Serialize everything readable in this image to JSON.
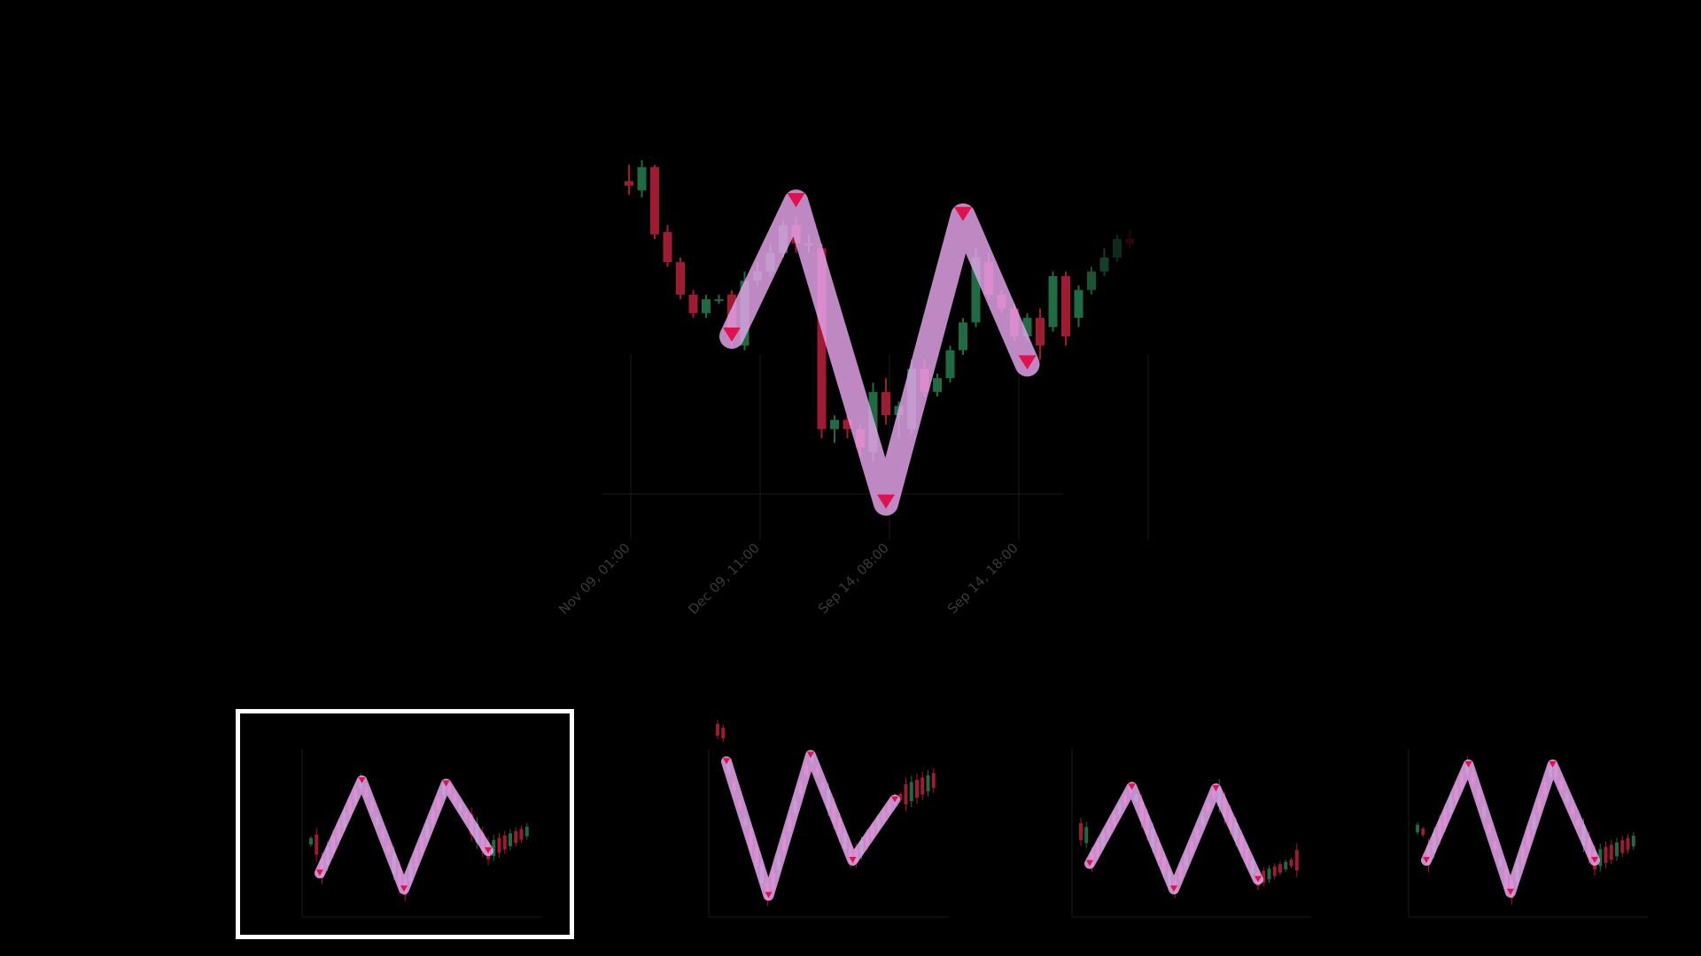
{
  "colors": {
    "background": "#000000",
    "up": "#1f6b43",
    "down": "#9e1b32",
    "pattern": "#e8a6ee",
    "marker": "#e0114e",
    "selection": "#ffffff"
  },
  "chart_data": {
    "type": "candlestick",
    "pattern": "double-top zigzag",
    "x_tick_labels": [
      "Nov 09, 01:00",
      "Dec 09, 11:00",
      "Sep 14, 08:00",
      "Sep 14, 18:00"
    ],
    "candles": [
      {
        "o": 91.5,
        "h": 95,
        "l": 88.5,
        "c": 90.5
      },
      {
        "o": 89.5,
        "h": 96,
        "l": 88,
        "c": 94.5
      },
      {
        "o": 94.5,
        "h": 95,
        "l": 79,
        "c": 80
      },
      {
        "o": 80.5,
        "h": 82,
        "l": 73,
        "c": 74
      },
      {
        "o": 74,
        "h": 75,
        "l": 66,
        "c": 67
      },
      {
        "o": 67,
        "h": 68,
        "l": 62,
        "c": 63
      },
      {
        "o": 63,
        "h": 67,
        "l": 62,
        "c": 66
      },
      {
        "o": 66,
        "h": 67,
        "l": 65,
        "c": 66
      },
      {
        "o": 67,
        "h": 68,
        "l": 56,
        "c": 58
      },
      {
        "o": 56,
        "h": 72,
        "l": 55,
        "c": 70
      },
      {
        "o": 70,
        "h": 74,
        "l": 69,
        "c": 72
      },
      {
        "o": 72,
        "h": 78,
        "l": 71,
        "c": 76
      },
      {
        "o": 76,
        "h": 83,
        "l": 75,
        "c": 82
      },
      {
        "o": 82,
        "h": 84,
        "l": 76,
        "c": 78
      },
      {
        "o": 78,
        "h": 80,
        "l": 76,
        "c": 78
      },
      {
        "o": 77,
        "h": 78,
        "l": 36,
        "c": 38
      },
      {
        "o": 38,
        "h": 41,
        "l": 35,
        "c": 40
      },
      {
        "o": 40,
        "h": 41,
        "l": 36,
        "c": 38
      },
      {
        "o": 38,
        "h": 39,
        "l": 32,
        "c": 34
      },
      {
        "o": 33,
        "h": 48,
        "l": 31,
        "c": 46
      },
      {
        "o": 46,
        "h": 49,
        "l": 39,
        "c": 41
      },
      {
        "o": 41,
        "h": 44,
        "l": 36,
        "c": 43
      },
      {
        "o": 38,
        "h": 53,
        "l": 37,
        "c": 51
      },
      {
        "o": 51,
        "h": 53,
        "l": 45,
        "c": 46
      },
      {
        "o": 46,
        "h": 50,
        "l": 45,
        "c": 49
      },
      {
        "o": 49,
        "h": 56,
        "l": 48,
        "c": 55
      },
      {
        "o": 55,
        "h": 62,
        "l": 54,
        "c": 61
      },
      {
        "o": 61,
        "h": 77,
        "l": 60,
        "c": 75
      },
      {
        "o": 74,
        "h": 76,
        "l": 66,
        "c": 67
      },
      {
        "o": 67,
        "h": 68,
        "l": 63,
        "c": 64
      },
      {
        "o": 64,
        "h": 65,
        "l": 57,
        "c": 58
      },
      {
        "o": 58,
        "h": 63,
        "l": 57,
        "c": 62
      },
      {
        "o": 62,
        "h": 64,
        "l": 53,
        "c": 56
      },
      {
        "o": 60,
        "h": 72,
        "l": 59,
        "c": 71
      },
      {
        "o": 71,
        "h": 72,
        "l": 56,
        "c": 58
      },
      {
        "o": 62,
        "h": 69,
        "l": 60,
        "c": 68
      },
      {
        "o": 68,
        "h": 73,
        "l": 67,
        "c": 72
      },
      {
        "o": 72,
        "h": 77,
        "l": 71,
        "c": 75
      },
      {
        "o": 75,
        "h": 80,
        "l": 74,
        "c": 79
      },
      {
        "o": 79,
        "h": 81,
        "l": 77,
        "c": 78
      }
    ],
    "zigzag": [
      {
        "i": 8,
        "y": 58
      },
      {
        "i": 13,
        "y": 87
      },
      {
        "i": 20,
        "y": 22
      },
      {
        "i": 26,
        "y": 84
      },
      {
        "i": 31,
        "y": 52
      }
    ],
    "ylim": [
      16,
      100
    ]
  },
  "thumbnails": [
    {
      "zig": [
        0.22,
        0.8,
        0.12,
        0.78,
        0.36
      ]
    },
    {
      "zig": [
        0.92,
        0.08,
        0.96,
        0.3,
        0.68
      ]
    },
    {
      "zig": [
        0.28,
        0.76,
        0.12,
        0.75,
        0.18
      ]
    },
    {
      "zig": [
        0.3,
        0.9,
        0.1,
        0.9,
        0.3
      ]
    }
  ]
}
